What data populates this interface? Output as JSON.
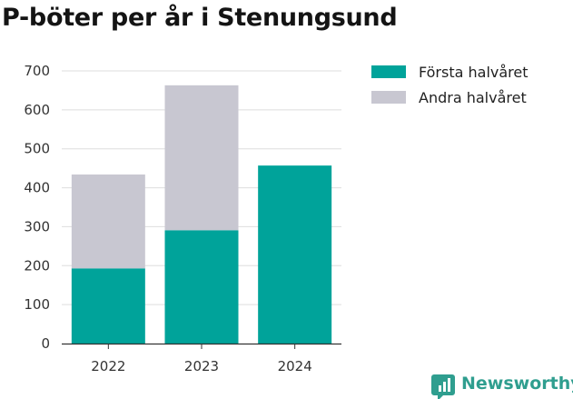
{
  "chart_data": {
    "type": "bar",
    "stacked": true,
    "title": "P-böter per år i Stenungsund",
    "categories": [
      "2022",
      "2023",
      "2024"
    ],
    "series": [
      {
        "name": "Första halvåret",
        "values": [
          193,
          291,
          457
        ],
        "color": "#00a39a"
      },
      {
        "name": "Andra halvåret",
        "values": [
          241,
          372,
          null
        ],
        "color": "#c8c7d1"
      }
    ],
    "yticks": [
      0,
      100,
      200,
      300,
      400,
      500,
      600,
      700
    ],
    "ylim": [
      0,
      700
    ],
    "xlabel": "",
    "ylabel": "",
    "grid": true,
    "legend": "right"
  },
  "brand": {
    "name": "Newsworthy",
    "color": "#2f9e8f"
  }
}
